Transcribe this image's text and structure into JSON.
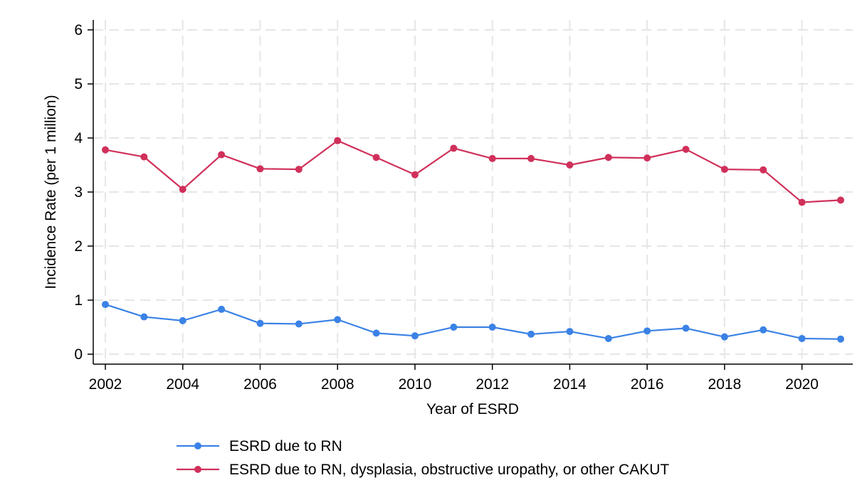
{
  "chart_data": {
    "type": "line",
    "xlabel": "Year of ESRD",
    "ylabel": "Incidence Rate (per 1 million)",
    "x": [
      2002,
      2003,
      2004,
      2005,
      2006,
      2007,
      2008,
      2009,
      2010,
      2011,
      2012,
      2013,
      2014,
      2015,
      2016,
      2017,
      2018,
      2019,
      2020,
      2021
    ],
    "xlim": [
      2002,
      2021
    ],
    "ylim": [
      0,
      6
    ],
    "xticks": [
      2002,
      2004,
      2006,
      2008,
      2010,
      2012,
      2014,
      2016,
      2018,
      2020
    ],
    "yticks": [
      0,
      1,
      2,
      3,
      4,
      5,
      6
    ],
    "grid": true,
    "legend_position": "bottom",
    "series": [
      {
        "name": "ESRD due to RN",
        "color": "#3b82e6",
        "values": [
          0.92,
          0.69,
          0.62,
          0.83,
          0.57,
          0.56,
          0.64,
          0.39,
          0.34,
          0.5,
          0.5,
          0.37,
          0.42,
          0.29,
          0.43,
          0.48,
          0.32,
          0.45,
          0.29,
          0.28
        ]
      },
      {
        "name": "ESRD due to RN, dysplasia, obstructive uropathy, or other CAKUT",
        "color": "#d0305a",
        "values": [
          3.78,
          3.65,
          3.05,
          3.69,
          3.43,
          3.42,
          3.95,
          3.64,
          3.32,
          3.81,
          3.62,
          3.62,
          3.5,
          3.64,
          3.63,
          3.79,
          3.42,
          3.41,
          2.81,
          2.85
        ]
      }
    ]
  }
}
